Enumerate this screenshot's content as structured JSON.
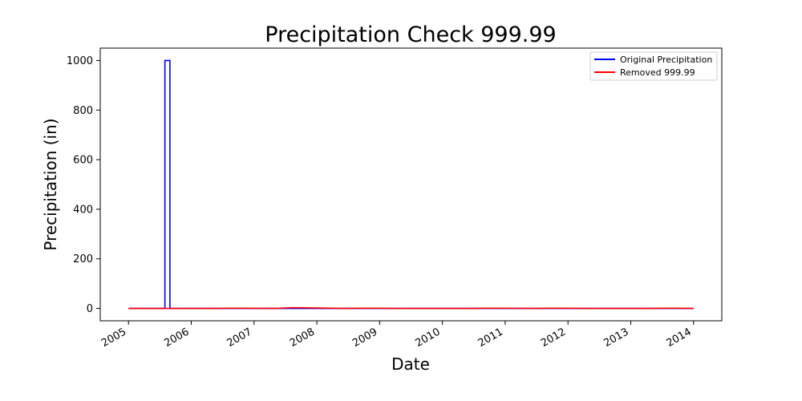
{
  "chart_data": {
    "type": "line",
    "title": "Precipitation Check 999.99",
    "xlabel": "Date",
    "ylabel": "Precipitation (in)",
    "xlim": [
      2004.55,
      2014.45
    ],
    "ylim": [
      -50,
      1050
    ],
    "x_ticks": [
      2005,
      2006,
      2007,
      2008,
      2009,
      2010,
      2011,
      2012,
      2013,
      2014
    ],
    "x_tick_labels": [
      "2005",
      "2006",
      "2007",
      "2008",
      "2009",
      "2010",
      "2011",
      "2012",
      "2013",
      "2014"
    ],
    "y_ticks": [
      0,
      200,
      400,
      600,
      800,
      1000
    ],
    "y_tick_labels": [
      "0",
      "200",
      "400",
      "600",
      "800",
      "1000"
    ],
    "grid": false,
    "legend_position": "top-right",
    "series": [
      {
        "name": "Original Precipitation",
        "color": "#0000ff",
        "x": [
          2005.0,
          2005.58,
          2005.58,
          2005.66,
          2005.66,
          2014.0
        ],
        "y": [
          0,
          0,
          999.99,
          999.99,
          0,
          0
        ]
      },
      {
        "name": "Removed 999.99",
        "color": "#ff0000",
        "x": [
          2005.0,
          2006.4,
          2006.6,
          2007.35,
          2007.6,
          2008.5,
          2008.75,
          2009.3,
          2010.5,
          2010.7,
          2011.5,
          2011.7,
          2012.4,
          2013.3,
          2013.6,
          2014.0
        ],
        "y": [
          0,
          0,
          1,
          0,
          3,
          0,
          1,
          0,
          0,
          1,
          0,
          1,
          0,
          0,
          1,
          0
        ]
      }
    ]
  }
}
